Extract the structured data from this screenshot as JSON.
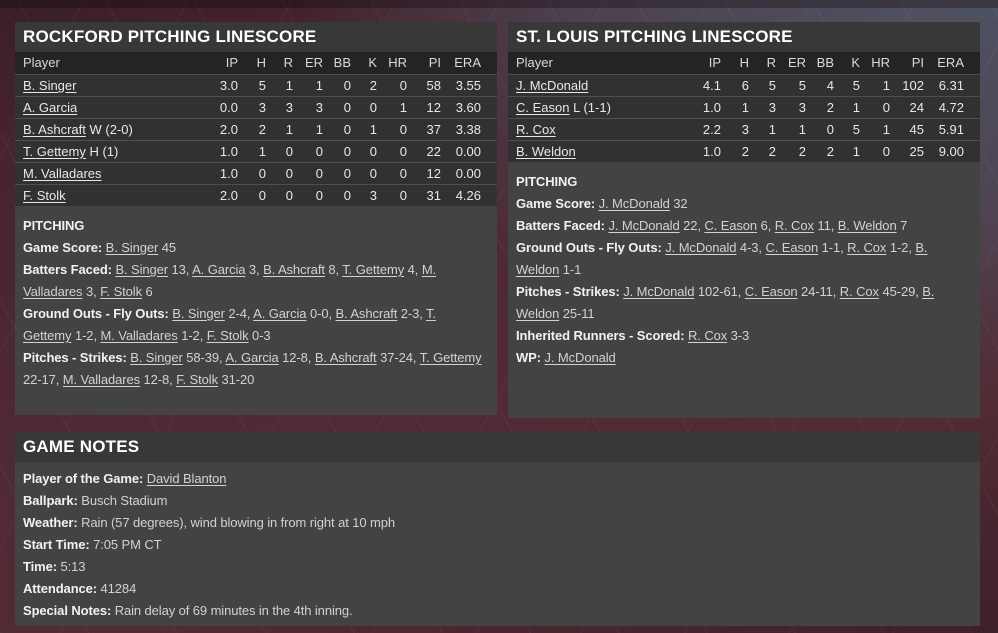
{
  "colors": {
    "background_maroon": "#4c2732",
    "background_slate": "#4f5768",
    "panel_gray": "#434343"
  },
  "panels": {
    "rockford": {
      "title": "ROCKFORD PITCHING LINESCORE",
      "columns": [
        "Player",
        "IP",
        "H",
        "R",
        "ER",
        "BB",
        "K",
        "HR",
        "PI",
        "ERA"
      ],
      "rows": [
        {
          "player": "B. Singer",
          "deco": "",
          "ip": "3.0",
          "h": "5",
          "r": "1",
          "er": "1",
          "bb": "0",
          "k": "2",
          "hr": "0",
          "pi": "58",
          "era": "3.55"
        },
        {
          "player": "A. Garcia",
          "deco": "",
          "ip": "0.0",
          "h": "3",
          "r": "3",
          "er": "3",
          "bb": "0",
          "k": "0",
          "hr": "1",
          "pi": "12",
          "era": "3.60"
        },
        {
          "player": "B. Ashcraft",
          "deco": "W (2-0)",
          "ip": "2.0",
          "h": "2",
          "r": "1",
          "er": "1",
          "bb": "0",
          "k": "1",
          "hr": "0",
          "pi": "37",
          "era": "3.38"
        },
        {
          "player": "T. Gettemy",
          "deco": "H (1)",
          "ip": "1.0",
          "h": "1",
          "r": "0",
          "er": "0",
          "bb": "0",
          "k": "0",
          "hr": "0",
          "pi": "22",
          "era": "0.00"
        },
        {
          "player": "M. Valladares",
          "deco": "",
          "ip": "1.0",
          "h": "0",
          "r": "0",
          "er": "0",
          "bb": "0",
          "k": "0",
          "hr": "0",
          "pi": "12",
          "era": "0.00"
        },
        {
          "player": "F. Stolk",
          "deco": "",
          "ip": "2.0",
          "h": "0",
          "r": "0",
          "er": "0",
          "bb": "0",
          "k": "3",
          "hr": "0",
          "pi": "31",
          "era": "4.26"
        }
      ],
      "section_heading": "PITCHING",
      "lines": [
        {
          "label": "Game Score:",
          "parts": [
            {
              "t": "B. Singer",
              "u": true
            },
            {
              "t": " 45"
            }
          ]
        },
        {
          "label": "Batters Faced:",
          "parts": [
            {
              "t": "B. Singer",
              "u": true
            },
            {
              "t": " 13, "
            },
            {
              "t": "A. Garcia",
              "u": true
            },
            {
              "t": " 3, "
            },
            {
              "t": "B. Ashcraft",
              "u": true
            },
            {
              "t": " 8, "
            },
            {
              "t": "T. Gettemy",
              "u": true
            },
            {
              "t": " 4, "
            },
            {
              "t": "M. Valladares",
              "u": true
            },
            {
              "t": " 3, "
            },
            {
              "t": "F. Stolk",
              "u": true
            },
            {
              "t": " 6"
            }
          ]
        },
        {
          "label": "Ground Outs - Fly Outs:",
          "parts": [
            {
              "t": "B. Singer",
              "u": true
            },
            {
              "t": " 2-4, "
            },
            {
              "t": "A. Garcia",
              "u": true
            },
            {
              "t": " 0-0, "
            },
            {
              "t": "B. Ashcraft",
              "u": true
            },
            {
              "t": " 2-3, "
            },
            {
              "t": "T. Gettemy",
              "u": true
            },
            {
              "t": " 1-2, "
            },
            {
              "t": "M. Valladares",
              "u": true
            },
            {
              "t": " 1-2, "
            },
            {
              "t": "F. Stolk",
              "u": true
            },
            {
              "t": " 0-3"
            }
          ]
        },
        {
          "label": "Pitches - Strikes:",
          "parts": [
            {
              "t": "B. Singer",
              "u": true
            },
            {
              "t": " 58-39, "
            },
            {
              "t": "A. Garcia",
              "u": true
            },
            {
              "t": " 12-8, "
            },
            {
              "t": "B. Ashcraft",
              "u": true
            },
            {
              "t": " 37-24, "
            },
            {
              "t": "T. Gettemy",
              "u": true
            },
            {
              "t": " 22-17, "
            },
            {
              "t": "M. Valladares",
              "u": true
            },
            {
              "t": " 12-8, "
            },
            {
              "t": "F. Stolk",
              "u": true
            },
            {
              "t": " 31-20"
            }
          ]
        }
      ]
    },
    "stlouis": {
      "title": "ST. LOUIS PITCHING LINESCORE",
      "columns": [
        "Player",
        "IP",
        "H",
        "R",
        "ER",
        "BB",
        "K",
        "HR",
        "PI",
        "ERA"
      ],
      "rows": [
        {
          "player": "J. McDonald",
          "deco": "",
          "ip": "4.1",
          "h": "6",
          "r": "5",
          "er": "5",
          "bb": "4",
          "k": "5",
          "hr": "1",
          "pi": "102",
          "era": "6.31"
        },
        {
          "player": "C. Eason",
          "deco": "L (1-1)",
          "ip": "1.0",
          "h": "1",
          "r": "3",
          "er": "3",
          "bb": "2",
          "k": "1",
          "hr": "0",
          "pi": "24",
          "era": "4.72"
        },
        {
          "player": "R. Cox",
          "deco": "",
          "ip": "2.2",
          "h": "3",
          "r": "1",
          "er": "1",
          "bb": "0",
          "k": "5",
          "hr": "1",
          "pi": "45",
          "era": "5.91"
        },
        {
          "player": "B. Weldon",
          "deco": "",
          "ip": "1.0",
          "h": "2",
          "r": "2",
          "er": "2",
          "bb": "2",
          "k": "1",
          "hr": "0",
          "pi": "25",
          "era": "9.00"
        }
      ],
      "section_heading": "PITCHING",
      "lines": [
        {
          "label": "Game Score:",
          "parts": [
            {
              "t": "J. McDonald",
              "u": true
            },
            {
              "t": " 32"
            }
          ]
        },
        {
          "label": "Batters Faced:",
          "parts": [
            {
              "t": "J. McDonald",
              "u": true
            },
            {
              "t": " 22, "
            },
            {
              "t": "C. Eason",
              "u": true
            },
            {
              "t": " 6, "
            },
            {
              "t": "R. Cox",
              "u": true
            },
            {
              "t": " 11, "
            },
            {
              "t": "B. Weldon",
              "u": true
            },
            {
              "t": " 7"
            }
          ]
        },
        {
          "label": "Ground Outs - Fly Outs:",
          "parts": [
            {
              "t": "J. McDonald",
              "u": true
            },
            {
              "t": " 4-3, "
            },
            {
              "t": "C. Eason",
              "u": true
            },
            {
              "t": " 1-1, "
            },
            {
              "t": "R. Cox",
              "u": true
            },
            {
              "t": " 1-2, "
            },
            {
              "t": "B. Weldon",
              "u": true
            },
            {
              "t": " 1-1"
            }
          ]
        },
        {
          "label": "Pitches - Strikes:",
          "parts": [
            {
              "t": "J. McDonald",
              "u": true
            },
            {
              "t": " 102-61, "
            },
            {
              "t": "C. Eason",
              "u": true
            },
            {
              "t": " 24-11, "
            },
            {
              "t": "R. Cox",
              "u": true
            },
            {
              "t": " 45-29, "
            },
            {
              "t": "B. Weldon",
              "u": true
            },
            {
              "t": " 25-11"
            }
          ]
        },
        {
          "label": "Inherited Runners - Scored:",
          "parts": [
            {
              "t": "R. Cox",
              "u": true
            },
            {
              "t": " 3-3"
            }
          ]
        },
        {
          "label": "WP:",
          "parts": [
            {
              "t": "J. McDonald",
              "u": true
            }
          ]
        }
      ]
    },
    "game_notes": {
      "title": "GAME NOTES",
      "lines": [
        {
          "label": "Player of the Game:",
          "parts": [
            {
              "t": "David Blanton",
              "u": true
            }
          ]
        },
        {
          "label": "Ballpark:",
          "parts": [
            {
              "t": "Busch Stadium"
            }
          ]
        },
        {
          "label": "Weather:",
          "parts": [
            {
              "t": "Rain (57 degrees), wind blowing in from right at 10 mph"
            }
          ]
        },
        {
          "label": "Start Time:",
          "parts": [
            {
              "t": "7:05 PM CT"
            }
          ]
        },
        {
          "label": "Time:",
          "parts": [
            {
              "t": "5:13"
            }
          ]
        },
        {
          "label": "Attendance:",
          "parts": [
            {
              "t": "41284"
            }
          ]
        },
        {
          "label": "Special Notes:",
          "parts": [
            {
              "t": "Rain delay of 69 minutes in the 4th inning."
            }
          ]
        }
      ]
    }
  }
}
